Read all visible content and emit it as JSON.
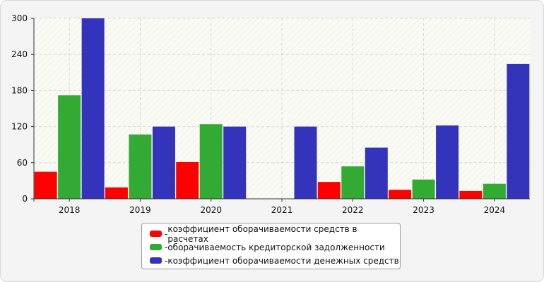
{
  "chart_data": {
    "type": "bar",
    "categories": [
      "2018",
      "2019",
      "2020",
      "2021",
      "2022",
      "2023",
      "2024"
    ],
    "series": [
      {
        "name": "коэффициент оборачиваемости средств в расчетах",
        "color": "#ff0000",
        "values": [
          45,
          19,
          61,
          0,
          28,
          15,
          13
        ]
      },
      {
        "name": "оборачиваемость кредиторской задолженности",
        "color": "#33aa33",
        "values": [
          172,
          107,
          124,
          0,
          54,
          32,
          25
        ]
      },
      {
        "name": "коэффициент оборачиваемости денежных средств",
        "color": "#3333bb",
        "values": [
          300,
          120,
          120,
          120,
          85,
          122,
          224
        ]
      }
    ],
    "ylim": [
      0,
      300
    ],
    "yticks": [
      0,
      60,
      120,
      180,
      240,
      300
    ],
    "grid": true,
    "legend_position": "bottom",
    "title": "",
    "xlabel": "",
    "ylabel": ""
  },
  "legend": {
    "prefix": "- "
  }
}
